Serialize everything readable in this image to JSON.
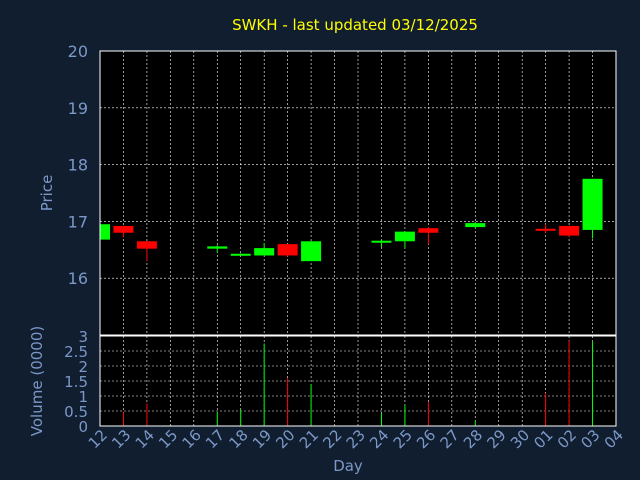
{
  "chart_data": {
    "type": "candlestick",
    "title": "SWKH - last updated 03/12/2025",
    "colors": {
      "background": "#111e30",
      "plot": "#000000",
      "up": "#00ff00",
      "down": "#ff0000",
      "grid": "#ffffff",
      "title": "#ffff00",
      "tick": "#7b98c7"
    },
    "price_panel": {
      "ylabel": "Price",
      "ylim": [
        15.0,
        20.0
      ],
      "yticks": [
        "16",
        "17",
        "18",
        "19",
        "20"
      ],
      "grid": true
    },
    "volume_panel": {
      "ylabel": "Volume (0000)",
      "ylim": [
        0,
        3
      ],
      "yticks": [
        "0",
        "0.5",
        "1",
        "1.5",
        "2",
        "2.5",
        "3"
      ],
      "grid": true
    },
    "xlabel": "Day",
    "x_tick_labels": [
      "12",
      "13",
      "14",
      "15",
      "16",
      "17",
      "18",
      "19",
      "20",
      "21",
      "22",
      "23",
      "24",
      "25",
      "26",
      "27",
      "28",
      "29",
      "30",
      "01",
      "02",
      "03",
      "04"
    ],
    "candles": [
      {
        "day": "12",
        "open": 16.68,
        "high": 16.95,
        "low": 16.68,
        "close": 16.95,
        "volume": 0.35
      },
      {
        "day": "13",
        "open": 16.92,
        "high": 16.92,
        "low": 16.72,
        "close": 16.8,
        "volume": 0.45
      },
      {
        "day": "14",
        "open": 16.65,
        "high": 16.65,
        "low": 16.3,
        "close": 16.52,
        "volume": 0.75
      },
      {
        "day": "17",
        "open": 16.52,
        "high": 16.58,
        "low": 16.45,
        "close": 16.56,
        "volume": 0.45
      },
      {
        "day": "18",
        "open": 16.42,
        "high": 16.44,
        "low": 16.4,
        "close": 16.43,
        "volume": 0.55
      },
      {
        "day": "19",
        "open": 16.4,
        "high": 16.62,
        "low": 16.4,
        "close": 16.53,
        "volume": 2.75
      },
      {
        "day": "20",
        "open": 16.6,
        "high": 16.6,
        "low": 16.38,
        "close": 16.4,
        "volume": 1.6
      },
      {
        "day": "21",
        "open": 16.3,
        "high": 16.65,
        "low": 16.3,
        "close": 16.65,
        "volume": 1.4
      },
      {
        "day": "24",
        "open": 16.65,
        "high": 16.68,
        "low": 16.55,
        "close": 16.66,
        "volume": 0.42
      },
      {
        "day": "25",
        "open": 16.65,
        "high": 16.82,
        "low": 16.52,
        "close": 16.82,
        "volume": 0.7
      },
      {
        "day": "26",
        "open": 16.88,
        "high": 16.9,
        "low": 16.6,
        "close": 16.8,
        "volume": 0.8
      },
      {
        "day": "28",
        "open": 16.9,
        "high": 16.99,
        "low": 16.88,
        "close": 16.97,
        "volume": 0.18
      },
      {
        "day": "01",
        "open": 16.87,
        "high": 16.95,
        "low": 16.8,
        "close": 16.85,
        "volume": 1.1
      },
      {
        "day": "02",
        "open": 16.92,
        "high": 16.92,
        "low": 16.72,
        "close": 16.75,
        "volume": 2.85
      },
      {
        "day": "03",
        "open": 16.85,
        "high": 17.75,
        "low": 16.7,
        "close": 17.75,
        "volume": 2.8
      }
    ]
  }
}
